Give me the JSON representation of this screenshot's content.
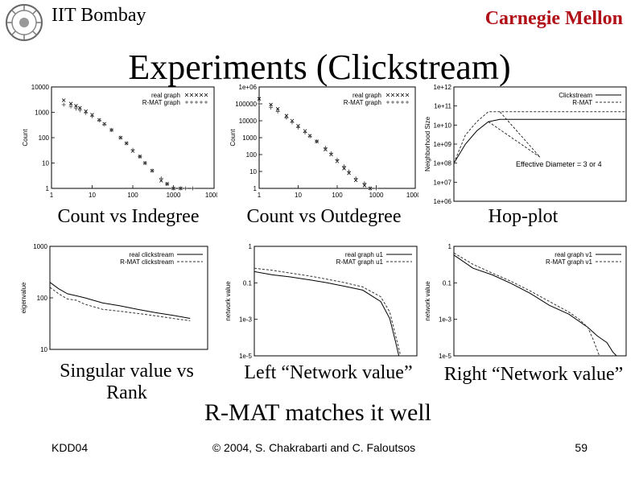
{
  "header": {
    "left": "IIT Bombay",
    "right": "Carnegie Mellon"
  },
  "title": "Experiments (Clickstream)",
  "captions": {
    "indegree": "Count vs Indegree",
    "outdegree": "Count vs Outdegree",
    "hopplot": "Hop-plot",
    "singular_line1": "Singular value vs",
    "singular_line2": "Rank",
    "left_net": "Left “Network value”",
    "right_net": "Right “Network value”"
  },
  "conclusion": "R-MAT matches it well",
  "footer": {
    "left": "KDD04",
    "center": "© 2004, S. Chakrabarti and C. Faloutsos",
    "right": "59"
  },
  "colors": {
    "carnegie": "#b01016"
  },
  "chart_data": [
    {
      "id": "indegree",
      "type": "scatter",
      "xscale": "log",
      "yscale": "log",
      "xlim": [
        1,
        10000
      ],
      "ylim": [
        1,
        10000
      ],
      "xticks": [
        "1",
        "10",
        "100",
        "1000",
        "10000"
      ],
      "yticks": [
        "1",
        "10",
        "100",
        "1000",
        "10000"
      ],
      "ylabel": "Count",
      "legend_position": "top-right",
      "series": [
        {
          "name": "real graph",
          "marker": "x",
          "x": [
            2,
            3,
            4,
            5,
            7,
            10,
            15,
            20,
            30,
            50,
            70,
            100,
            150,
            200,
            300,
            500,
            700,
            1000,
            1500
          ],
          "y": [
            3000,
            2200,
            1800,
            1500,
            1100,
            800,
            500,
            350,
            200,
            100,
            60,
            30,
            18,
            10,
            5,
            2,
            1.5,
            1,
            1
          ]
        },
        {
          "name": "R-MAT graph",
          "marker": "+",
          "x": [
            2,
            3,
            4,
            5,
            7,
            10,
            15,
            20,
            30,
            50,
            70,
            100,
            150,
            200,
            300,
            500,
            700,
            1000,
            1500,
            2000,
            3000
          ],
          "y": [
            2000,
            1700,
            1400,
            1200,
            950,
            700,
            480,
            330,
            200,
            100,
            60,
            33,
            18,
            10,
            5,
            2.5,
            1.5,
            1,
            1,
            1,
            1
          ]
        }
      ]
    },
    {
      "id": "outdegree",
      "type": "scatter",
      "xscale": "log",
      "yscale": "log",
      "xlim": [
        1,
        10000
      ],
      "ylim": [
        1,
        1000000
      ],
      "xticks": [
        "1",
        "10",
        "100",
        "1000",
        "10000"
      ],
      "yticks": [
        "1",
        "10",
        "100",
        "1000",
        "10000",
        "100000",
        "1e+06"
      ],
      "ylabel": "Count",
      "legend_position": "top-right",
      "series": [
        {
          "name": "real graph",
          "marker": "x",
          "x": [
            1,
            2,
            3,
            5,
            7,
            10,
            15,
            20,
            30,
            50,
            70,
            100,
            150,
            200,
            300,
            500,
            700
          ],
          "y": [
            200000,
            90000,
            50000,
            20000,
            10000,
            5000,
            2500,
            1300,
            600,
            200,
            100,
            40,
            15,
            8,
            3,
            1.5,
            1
          ]
        },
        {
          "name": "R-MAT graph",
          "marker": "+",
          "x": [
            1,
            2,
            3,
            5,
            7,
            10,
            15,
            20,
            30,
            50,
            70,
            100,
            150,
            200,
            300,
            500,
            700,
            1000
          ],
          "y": [
            100000,
            60000,
            35000,
            15000,
            8000,
            4000,
            2000,
            1200,
            600,
            250,
            120,
            50,
            20,
            10,
            4,
            2,
            1,
            1
          ]
        }
      ]
    },
    {
      "id": "hopplot",
      "type": "line",
      "yscale": "log",
      "xlim": [
        0,
        15
      ],
      "ylim": [
        1000000,
        1000000000000
      ],
      "yticks": [
        "1e+06",
        "1e+07",
        "1e+08",
        "1e+09",
        "1e+10",
        "1e+11",
        "1e+12"
      ],
      "ylabel": "Neighborhood Size",
      "legend_position": "top-right",
      "annotation": "Effective Diameter = 3 or 4",
      "series": [
        {
          "name": "Clickstream",
          "style": "solid",
          "x": [
            0,
            1,
            2,
            3,
            4,
            5,
            6,
            8,
            10,
            12,
            15
          ],
          "y": [
            100000000,
            1000000000,
            5000000000,
            15000000000,
            20000000000,
            20000000000,
            20000000000,
            20000000000,
            20000000000,
            20000000000,
            20000000000
          ]
        },
        {
          "name": "R-MAT",
          "style": "dashed",
          "x": [
            0,
            1,
            2,
            3,
            4,
            5,
            6,
            8,
            10,
            12,
            15
          ],
          "y": [
            100000000,
            3000000000,
            15000000000,
            50000000000,
            50000000000,
            50000000000,
            50000000000,
            50000000000,
            50000000000,
            50000000000,
            50000000000
          ]
        }
      ]
    },
    {
      "id": "singular",
      "type": "line",
      "yscale": "log",
      "xlim": [
        1,
        10
      ],
      "ylim": [
        10,
        1000
      ],
      "yticks": [
        "10",
        "100",
        "1000"
      ],
      "ylabel": "eigenvalue",
      "legend_position": "top-right",
      "series": [
        {
          "name": "real clickstream",
          "style": "solid",
          "x": [
            1,
            1.5,
            2,
            2.5,
            3,
            4,
            5,
            6,
            7,
            8,
            9
          ],
          "y": [
            200,
            150,
            120,
            110,
            100,
            80,
            70,
            60,
            52,
            46,
            40
          ]
        },
        {
          "name": "R-MAT clickstream",
          "style": "dashed",
          "x": [
            1,
            1.5,
            2,
            2.5,
            3,
            4,
            5,
            6,
            7,
            8,
            9
          ],
          "y": [
            160,
            120,
            95,
            90,
            75,
            60,
            55,
            50,
            45,
            40,
            36
          ]
        }
      ]
    },
    {
      "id": "leftnet",
      "type": "line",
      "yscale": "log",
      "xlim": [
        1,
        10
      ],
      "ylim": [
        1e-05,
        1
      ],
      "yticks": [
        "1e-5",
        "1e-3",
        "0.1",
        "1"
      ],
      "ylabel": "network value",
      "legend_position": "top-right",
      "series": [
        {
          "name": "real graph u1",
          "style": "solid",
          "x": [
            1,
            2,
            3,
            4,
            5,
            6,
            7,
            8,
            8.5,
            8.8,
            9
          ],
          "y": [
            0.07,
            0.05,
            0.04,
            0.03,
            0.022,
            0.015,
            0.01,
            0.003,
            0.0005,
            5e-05,
            1e-05
          ]
        },
        {
          "name": "R-MAT graph u1",
          "style": "dashed",
          "x": [
            1,
            2,
            3,
            4,
            5,
            6,
            7,
            8,
            8.5,
            8.8,
            9.1
          ],
          "y": [
            0.1,
            0.08,
            0.06,
            0.045,
            0.032,
            0.022,
            0.014,
            0.005,
            0.001,
            0.0001,
            1e-05
          ]
        }
      ]
    },
    {
      "id": "rightnet",
      "type": "line",
      "yscale": "log",
      "xlim": [
        1,
        10
      ],
      "ylim": [
        1e-05,
        1
      ],
      "yticks": [
        "1e-5",
        "1e-3",
        "0.1",
        "1"
      ],
      "ylabel": "network value",
      "legend_position": "top-right",
      "series": [
        {
          "name": "real graph v1",
          "style": "solid",
          "x": [
            1,
            2,
            3,
            4,
            5,
            6,
            7,
            8,
            8.5,
            9,
            9.3,
            9.5
          ],
          "y": [
            0.4,
            0.1,
            0.05,
            0.02,
            0.007,
            0.002,
            0.0008,
            0.0002,
            8e-05,
            4e-05,
            1.5e-05,
            1e-05
          ]
        },
        {
          "name": "R-MAT graph v1",
          "style": "dashed",
          "x": [
            1,
            2,
            3,
            4,
            5,
            6,
            7,
            7.5,
            8,
            8.3,
            8.6
          ],
          "y": [
            0.5,
            0.15,
            0.06,
            0.025,
            0.009,
            0.003,
            0.001,
            0.0005,
            0.0002,
            5e-05,
            1e-05
          ]
        }
      ]
    }
  ]
}
